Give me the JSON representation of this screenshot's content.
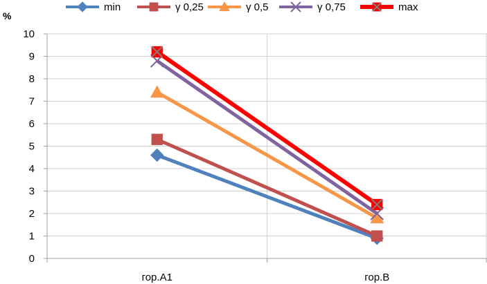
{
  "chart_data": {
    "type": "line",
    "title": "",
    "xlabel": "",
    "ylabel": "%",
    "ylim": [
      0,
      10
    ],
    "yticks": [
      0,
      1,
      2,
      3,
      4,
      5,
      6,
      7,
      8,
      9,
      10
    ],
    "grid": true,
    "legend_position": "top",
    "categories": [
      "гор.А1",
      "гор.В"
    ],
    "series": [
      {
        "name": "min",
        "values": [
          4.6,
          0.9
        ],
        "color": "#4f81bd",
        "marker": "diamond"
      },
      {
        "name": "γ 0,25",
        "values": [
          5.3,
          1.0
        ],
        "color": "#c0504d",
        "marker": "square"
      },
      {
        "name": "γ 0,5",
        "values": [
          7.4,
          1.8
        ],
        "color": "#f79646",
        "marker": "triangle"
      },
      {
        "name": "γ 0,75",
        "values": [
          8.8,
          2.0
        ],
        "color": "#8064a2",
        "marker": "x"
      },
      {
        "name": "max",
        "values": [
          9.2,
          2.4
        ],
        "color": "#ff0000",
        "marker": "square-x"
      }
    ]
  }
}
